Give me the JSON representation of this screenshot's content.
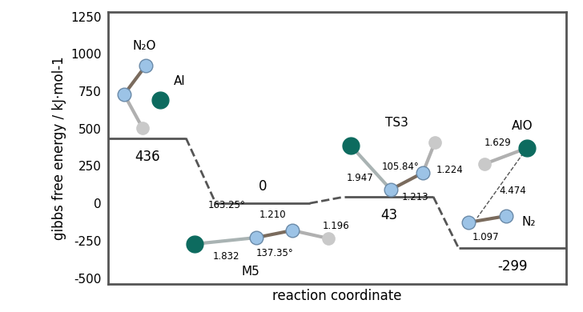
{
  "chart_data": {
    "type": "energy_profile",
    "y_label": "gibbs free energy / kJ·mol-1",
    "x_label": "reaction coordinate",
    "ylim": [
      -540,
      1280
    ],
    "yticks": [
      -500,
      -250,
      0,
      250,
      500,
      750,
      1000,
      1250
    ],
    "tick_labels": "y",
    "color": "#555555",
    "line_style": "dashed",
    "states": [
      {
        "energy": 436,
        "labels": [
          "N₂O",
          "Al"
        ],
        "measurements": []
      },
      {
        "energy": 0,
        "labels": [
          "M5"
        ],
        "measurements": [
          "163.25°",
          "1.210",
          "1.832",
          "137.35°",
          "1.196"
        ]
      },
      {
        "energy": 43,
        "labels": [
          "TS3"
        ],
        "measurements": [
          "105.84°",
          "1.224",
          "1.947",
          "1.213"
        ]
      },
      {
        "energy": -299,
        "labels": [
          "AlO",
          "N₂"
        ],
        "measurements": [
          "1.629",
          "4.474",
          "1.097"
        ]
      }
    ]
  }
}
